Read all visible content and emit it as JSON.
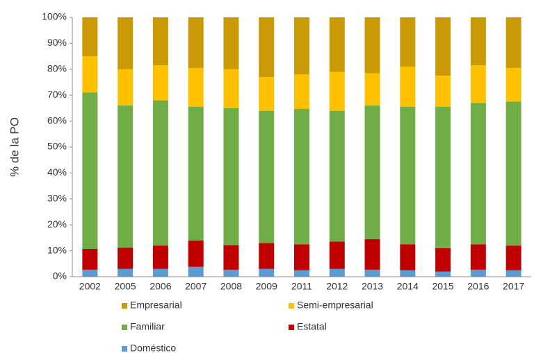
{
  "chart_data": {
    "type": "stacked_bar_percent",
    "y_axis_label": "% de la PO",
    "categories": [
      "2002",
      "2005",
      "2006",
      "2007",
      "2008",
      "2009",
      "2011",
      "2012",
      "2013",
      "2014",
      "2015",
      "2016",
      "2017"
    ],
    "series": [
      {
        "name": "Doméstico",
        "color": "#5b9bd5",
        "values": [
          2.7,
          3,
          3,
          3.8,
          2.7,
          3,
          2.5,
          3,
          2.7,
          2.5,
          2,
          2.7,
          2.5
        ]
      },
      {
        "name": "Estatal",
        "color": "#c00000",
        "values": [
          8,
          8.2,
          9,
          10.2,
          9.5,
          10,
          10,
          10.5,
          11.8,
          10,
          9,
          9.8,
          9.5
        ]
      },
      {
        "name": "Familiar",
        "color": "#70ad47",
        "values": [
          60.3,
          54.8,
          56,
          51.5,
          52.8,
          51,
          52.2,
          50.5,
          51.5,
          53,
          54.5,
          54.5,
          55.5
        ]
      },
      {
        "name": "Semi-empresarial",
        "color": "#ffc000",
        "values": [
          14,
          14,
          13.5,
          15,
          15,
          13,
          13.3,
          15,
          12.5,
          15.5,
          12,
          14.5,
          13
        ]
      },
      {
        "name": "Empresarial",
        "color": "#c99a06",
        "values": [
          15,
          20,
          18.5,
          19.5,
          20,
          23,
          22,
          21,
          21.5,
          19,
          22.5,
          18.5,
          19.5
        ]
      }
    ],
    "ylim": [
      0,
      100
    ],
    "yticks": [
      {
        "value": 0,
        "label": "0%"
      },
      {
        "value": 10,
        "label": "10%"
      },
      {
        "value": 20,
        "label": "20%"
      },
      {
        "value": 30,
        "label": "30%"
      },
      {
        "value": 40,
        "label": "40%"
      },
      {
        "value": 50,
        "label": "50%"
      },
      {
        "value": 60,
        "label": "60%"
      },
      {
        "value": 70,
        "label": "70%"
      },
      {
        "value": 80,
        "label": "80%"
      },
      {
        "value": 90,
        "label": "90%"
      },
      {
        "value": 100,
        "label": "100%"
      }
    ],
    "grid": false
  }
}
